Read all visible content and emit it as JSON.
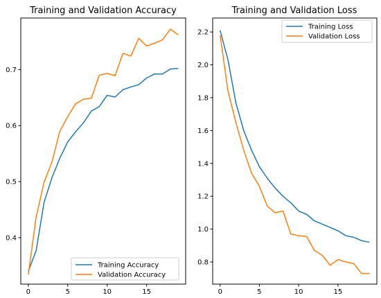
{
  "colors": {
    "training": "#1f77b4",
    "validation": "#ff7f0e"
  },
  "chart_data": [
    {
      "type": "line",
      "title": "Training and Validation Accuracy",
      "xlabel": "",
      "ylabel": "",
      "xlim": [
        -0.95,
        19.95
      ],
      "ylim": [
        0.317,
        0.792
      ],
      "xticks": [
        0,
        5,
        10,
        15
      ],
      "yticks": [
        0.4,
        0.5,
        0.6,
        0.7
      ],
      "ytick_labels": [
        "0.4",
        "0.5",
        "0.6",
        "0.7"
      ],
      "legend": "lower-right",
      "grid": false,
      "x": [
        0,
        1,
        2,
        3,
        4,
        5,
        6,
        7,
        8,
        9,
        10,
        11,
        12,
        13,
        14,
        15,
        16,
        17,
        18,
        19
      ],
      "series": [
        {
          "name": "Training Accuracy",
          "color": "#1f77b4",
          "values": [
            0.34,
            0.377,
            0.463,
            0.507,
            0.542,
            0.571,
            0.589,
            0.605,
            0.626,
            0.634,
            0.654,
            0.651,
            0.664,
            0.669,
            0.673,
            0.685,
            0.692,
            0.692,
            0.701,
            0.702
          ]
        },
        {
          "name": "Validation Accuracy",
          "color": "#ff7f0e",
          "values": [
            0.334,
            0.437,
            0.499,
            0.535,
            0.59,
            0.616,
            0.639,
            0.647,
            0.649,
            0.69,
            0.693,
            0.689,
            0.729,
            0.724,
            0.756,
            0.742,
            0.747,
            0.753,
            0.772,
            0.762
          ]
        }
      ]
    },
    {
      "type": "line",
      "title": "Training and Validation Loss",
      "xlabel": "",
      "ylabel": "",
      "xlim": [
        -0.95,
        19.95
      ],
      "ylim": [
        0.665,
        2.285
      ],
      "xticks": [
        0,
        5,
        10,
        15
      ],
      "yticks": [
        0.8,
        1.0,
        1.2,
        1.4,
        1.6,
        1.8,
        2.0,
        2.2
      ],
      "ytick_labels": [
        "0.8",
        "1.0",
        "1.2",
        "1.4",
        "1.6",
        "1.8",
        "2.0",
        "2.2"
      ],
      "legend": "top-right",
      "grid": false,
      "x": [
        0,
        1,
        2,
        3,
        4,
        5,
        6,
        7,
        8,
        9,
        10,
        11,
        12,
        13,
        14,
        15,
        16,
        17,
        18,
        19
      ],
      "series": [
        {
          "name": "Training Loss",
          "color": "#1f77b4",
          "values": [
            2.21,
            2.03,
            1.77,
            1.6,
            1.48,
            1.38,
            1.31,
            1.25,
            1.2,
            1.16,
            1.11,
            1.09,
            1.05,
            1.03,
            1.01,
            0.99,
            0.96,
            0.95,
            0.93,
            0.92
          ]
        },
        {
          "name": "Validation Loss",
          "color": "#ff7f0e",
          "values": [
            2.18,
            1.84,
            1.65,
            1.48,
            1.34,
            1.26,
            1.14,
            1.1,
            1.11,
            0.97,
            0.96,
            0.955,
            0.87,
            0.84,
            0.78,
            0.815,
            0.8,
            0.79,
            0.73,
            0.73
          ]
        }
      ]
    }
  ]
}
